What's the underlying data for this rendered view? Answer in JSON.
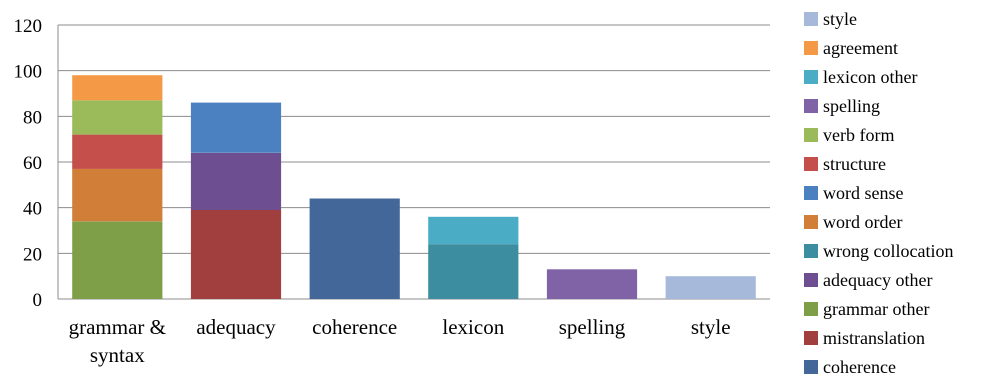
{
  "chart_data": {
    "type": "bar",
    "stacked": true,
    "categories": [
      [
        "grammar &",
        "syntax"
      ],
      [
        "adequacy"
      ],
      [
        "coherence"
      ],
      [
        "lexicon"
      ],
      [
        "spelling"
      ],
      [
        "style"
      ]
    ],
    "ylim": [
      0,
      120
    ],
    "yticks": [
      "0",
      "20",
      "40",
      "60",
      "80",
      "100",
      "120"
    ],
    "grid": true,
    "legend_position": "right",
    "series": [
      {
        "name": "coherence",
        "color": "#44679A",
        "values": [
          0,
          0,
          44,
          0,
          0,
          0
        ]
      },
      {
        "name": "mistranslation",
        "color": "#A03F3D",
        "values": [
          0,
          39,
          0,
          0,
          0,
          0
        ]
      },
      {
        "name": "grammar other",
        "color": "#7E9E48",
        "values": [
          34,
          0,
          0,
          0,
          0,
          0
        ]
      },
      {
        "name": "adequacy other",
        "color": "#6D4F91",
        "values": [
          0,
          25,
          0,
          0,
          0,
          0
        ]
      },
      {
        "name": "wrong collocation",
        "color": "#3C8D9F",
        "values": [
          0,
          0,
          0,
          24,
          0,
          0
        ]
      },
      {
        "name": "word order",
        "color": "#D17E39",
        "values": [
          23,
          0,
          0,
          0,
          0,
          0
        ]
      },
      {
        "name": "word sense",
        "color": "#4C81C1",
        "values": [
          0,
          22,
          0,
          0,
          0,
          0
        ]
      },
      {
        "name": "structure",
        "color": "#C54F4B",
        "values": [
          15,
          0,
          0,
          0,
          0,
          0
        ]
      },
      {
        "name": "verb form",
        "color": "#9BBB5A",
        "values": [
          15,
          0,
          0,
          0,
          0,
          0
        ]
      },
      {
        "name": "spelling",
        "color": "#8063A6",
        "values": [
          0,
          0,
          0,
          0,
          13,
          0
        ]
      },
      {
        "name": "lexicon other",
        "color": "#4BACC6",
        "values": [
          0,
          0,
          0,
          12,
          0,
          0
        ]
      },
      {
        "name": "agreement",
        "color": "#F49A47",
        "values": [
          11,
          0,
          0,
          0,
          0,
          0
        ]
      },
      {
        "name": "style",
        "color": "#A6B9DB",
        "values": [
          0,
          0,
          0,
          0,
          0,
          10
        ]
      }
    ]
  }
}
